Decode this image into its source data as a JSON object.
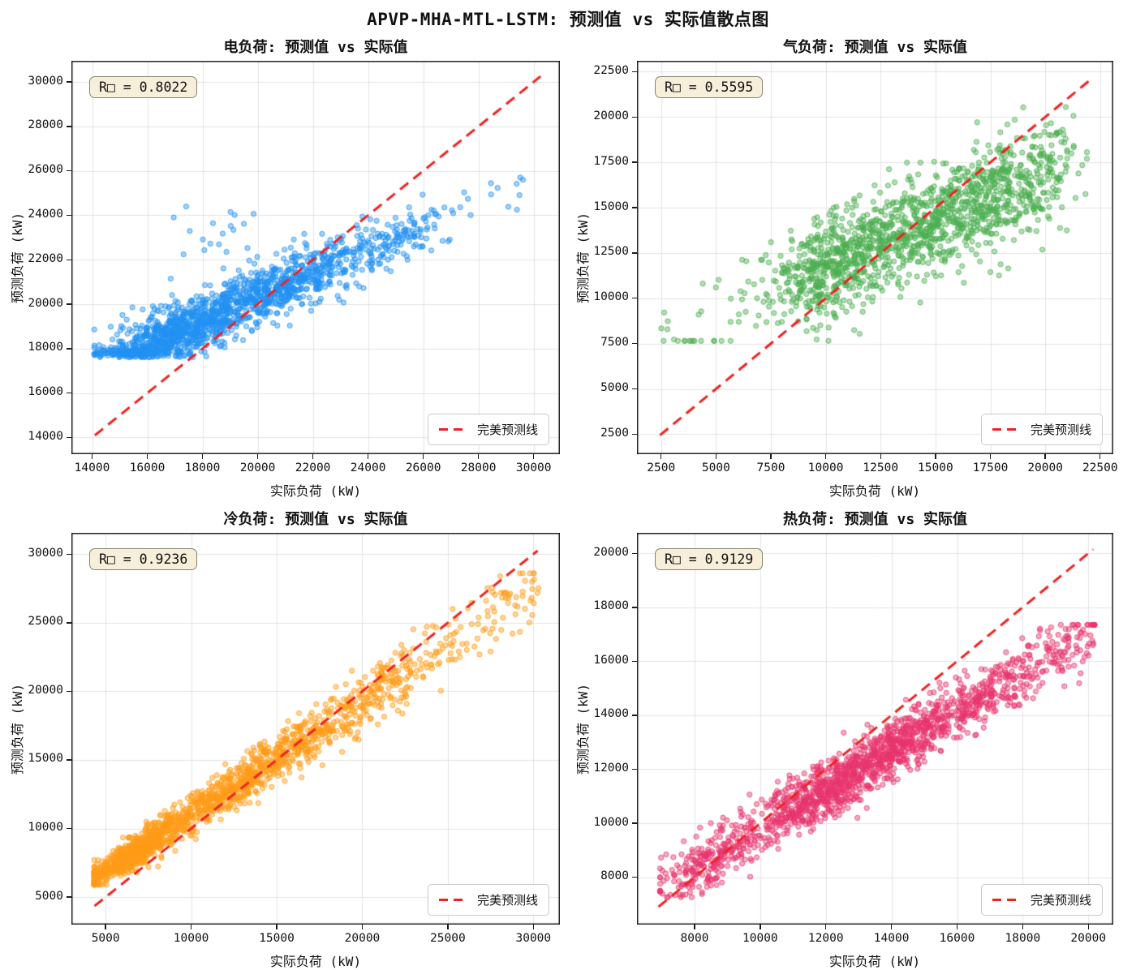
{
  "figure_title": "APVP-MHA-MTL-LSTM: 预测值 vs 实际值散点图",
  "colors": {
    "grid": "#e3e3e3",
    "axis": "#111111",
    "perfect_line": "#ee2222",
    "r2_box_bg": "#f7eed8",
    "r2_box_border": "#84846e",
    "electric_points": "#2191f2",
    "gas_points": "#4caf50",
    "cooling_points": "#ff9b17",
    "heat_points": "#e8356d"
  },
  "chart_data": [
    {
      "type": "scatter",
      "id": "electric",
      "title": "电负荷: 预测值 vs 实际值",
      "xlabel": "实际负荷 (kW)",
      "ylabel": "预测负荷 (kW)",
      "r2": 0.8022,
      "r2_label": "R□ = 0.8022",
      "r2_position": "upper left",
      "legend_label": "完美预测线",
      "legend_position": "lower right",
      "grid": true,
      "point_color": "#2191f2",
      "xlim": [
        13250,
        30950
      ],
      "ylim": [
        13250,
        30950
      ],
      "xticks": [
        14000,
        16000,
        18000,
        20000,
        22000,
        24000,
        26000,
        28000,
        30000
      ],
      "yticks": [
        14000,
        16000,
        18000,
        20000,
        22000,
        24000,
        26000,
        28000,
        30000
      ],
      "perfect_line": {
        "start": 14100,
        "end": 30250,
        "style": "dashed",
        "color": "#ee2222"
      },
      "points_model": {
        "seed": 7,
        "n": 1600,
        "x_mix": [
          {
            "w": 0.3,
            "type": "g",
            "mu": 16400,
            "s": 1100
          },
          {
            "w": 0.3,
            "type": "g",
            "mu": 18600,
            "s": 1400
          },
          {
            "w": 0.21,
            "type": "g",
            "mu": 20800,
            "s": 1300
          },
          {
            "w": 0.105,
            "type": "g",
            "mu": 23000,
            "s": 1200
          },
          {
            "w": 0.07,
            "type": "g",
            "mu": 25300,
            "s": 900
          },
          {
            "w": 0.015,
            "type": "u",
            "lo": 26500,
            "hi": 30300
          }
        ],
        "x_clamp": [
          14080,
          30320
        ],
        "trend": {
          "a": 9700,
          "b": 0.53
        },
        "noise": 640,
        "noise_slope": 0,
        "y_floor": 17780,
        "floor_jitter": 170,
        "y_clamp": [
          17500,
          25700
        ],
        "outliers": {
          "n": 22,
          "x_lo": 16800,
          "x_hi": 21500,
          "y_lo": 22200,
          "y_hi": 24500
        }
      }
    },
    {
      "type": "scatter",
      "id": "gas",
      "title": "气负荷: 预测值 vs 实际值",
      "xlabel": "实际负荷 (kW)",
      "ylabel": "预测负荷 (kW)",
      "r2": 0.5595,
      "r2_label": "R□ = 0.5595",
      "r2_position": "upper left",
      "legend_label": "完美预测线",
      "legend_position": "lower right",
      "grid": true,
      "point_color": "#4caf50",
      "xlim": [
        1400,
        23100
      ],
      "ylim": [
        1400,
        23100
      ],
      "xticks": [
        2500,
        5000,
        7500,
        10000,
        12500,
        15000,
        17500,
        20000,
        22500
      ],
      "yticks": [
        2500,
        5000,
        7500,
        10000,
        12500,
        15000,
        17500,
        20000,
        22500
      ],
      "perfect_line": {
        "start": 2450,
        "end": 22100,
        "style": "dashed",
        "color": "#ee2222"
      },
      "points_model": {
        "seed": 11,
        "n": 1500,
        "x_mix": [
          {
            "w": 0.02,
            "type": "u",
            "lo": 2400,
            "hi": 7300
          },
          {
            "w": 0.31,
            "type": "g",
            "mu": 10200,
            "s": 1500
          },
          {
            "w": 0.35,
            "type": "g",
            "mu": 14000,
            "s": 1900
          },
          {
            "w": 0.24,
            "type": "g",
            "mu": 17500,
            "s": 1500
          },
          {
            "w": 0.08,
            "type": "g",
            "mu": 19800,
            "s": 1000
          }
        ],
        "x_clamp": [
          2400,
          21900
        ],
        "trend": {
          "a": 6500,
          "b": 0.52
        },
        "noise": 1400,
        "noise_slope": 0,
        "y_clamp": [
          7650,
          20550
        ]
      }
    },
    {
      "type": "scatter",
      "id": "cooling",
      "title": "冷负荷: 预测值 vs 实际值",
      "xlabel": "实际负荷 (kW)",
      "ylabel": "预测负荷 (kW)",
      "r2": 0.9236,
      "r2_label": "R□ = 0.9236",
      "r2_position": "upper left",
      "legend_label": "完美预测线",
      "legend_position": "lower right",
      "grid": true,
      "point_color": "#ff9b17",
      "xlim": [
        3000,
        31550
      ],
      "ylim": [
        3000,
        31550
      ],
      "xticks": [
        5000,
        10000,
        15000,
        20000,
        25000,
        30000
      ],
      "yticks": [
        5000,
        10000,
        15000,
        20000,
        25000,
        30000
      ],
      "perfect_line": {
        "start": 4350,
        "end": 30250,
        "style": "dashed",
        "color": "#ee2222"
      },
      "points_model": {
        "seed": 23,
        "n": 1700,
        "x_mix": [
          {
            "w": 0.4,
            "type": "g",
            "mu": 6700,
            "s": 1500
          },
          {
            "w": 0.26,
            "type": "g",
            "mu": 12200,
            "s": 2200
          },
          {
            "w": 0.2,
            "type": "g",
            "mu": 16800,
            "s": 2300
          },
          {
            "w": 0.09,
            "type": "g",
            "mu": 21500,
            "s": 1800
          },
          {
            "w": 0.05,
            "type": "u",
            "lo": 24000,
            "hi": 30300
          }
        ],
        "x_clamp": [
          4330,
          30330
        ],
        "trend": {
          "a": 2800,
          "b": 0.82
        },
        "noise": 380,
        "noise_slope": 0.032,
        "y_clamp": [
          5900,
          28600
        ]
      }
    },
    {
      "type": "scatter",
      "id": "heat",
      "title": "热负荷: 预测值 vs 实际值",
      "xlabel": "实际负荷 (kW)",
      "ylabel": "预测负荷 (kW)",
      "r2": 0.9129,
      "r2_label": "R□ = 0.9129",
      "r2_position": "upper left",
      "legend_label": "完美预测线",
      "legend_position": "lower right",
      "grid": true,
      "point_color": "#e8356d",
      "xlim": [
        6245,
        20760
      ],
      "ylim": [
        6245,
        20760
      ],
      "xticks": [
        8000,
        10000,
        12000,
        14000,
        16000,
        18000,
        20000
      ],
      "yticks": [
        8000,
        10000,
        12000,
        14000,
        16000,
        18000,
        20000
      ],
      "perfect_line": {
        "start": 6900,
        "end": 20150,
        "style": "dashed",
        "color": "#ee2222"
      },
      "points_model": {
        "seed": 41,
        "n": 1700,
        "x_mix": [
          {
            "w": 0.14,
            "type": "g",
            "mu": 8400,
            "s": 750
          },
          {
            "w": 0.44,
            "type": "g",
            "mu": 12000,
            "s": 1500
          },
          {
            "w": 0.28,
            "type": "g",
            "mu": 14700,
            "s": 1300
          },
          {
            "w": 0.14,
            "type": "u",
            "lo": 16000,
            "hi": 20200
          }
        ],
        "x_clamp": [
          6950,
          20250
        ],
        "trend": {
          "a": 2600,
          "b": 0.72
        },
        "noise": 560,
        "noise_slope": 0,
        "y_clamp": [
          7260,
          17350
        ]
      }
    }
  ]
}
